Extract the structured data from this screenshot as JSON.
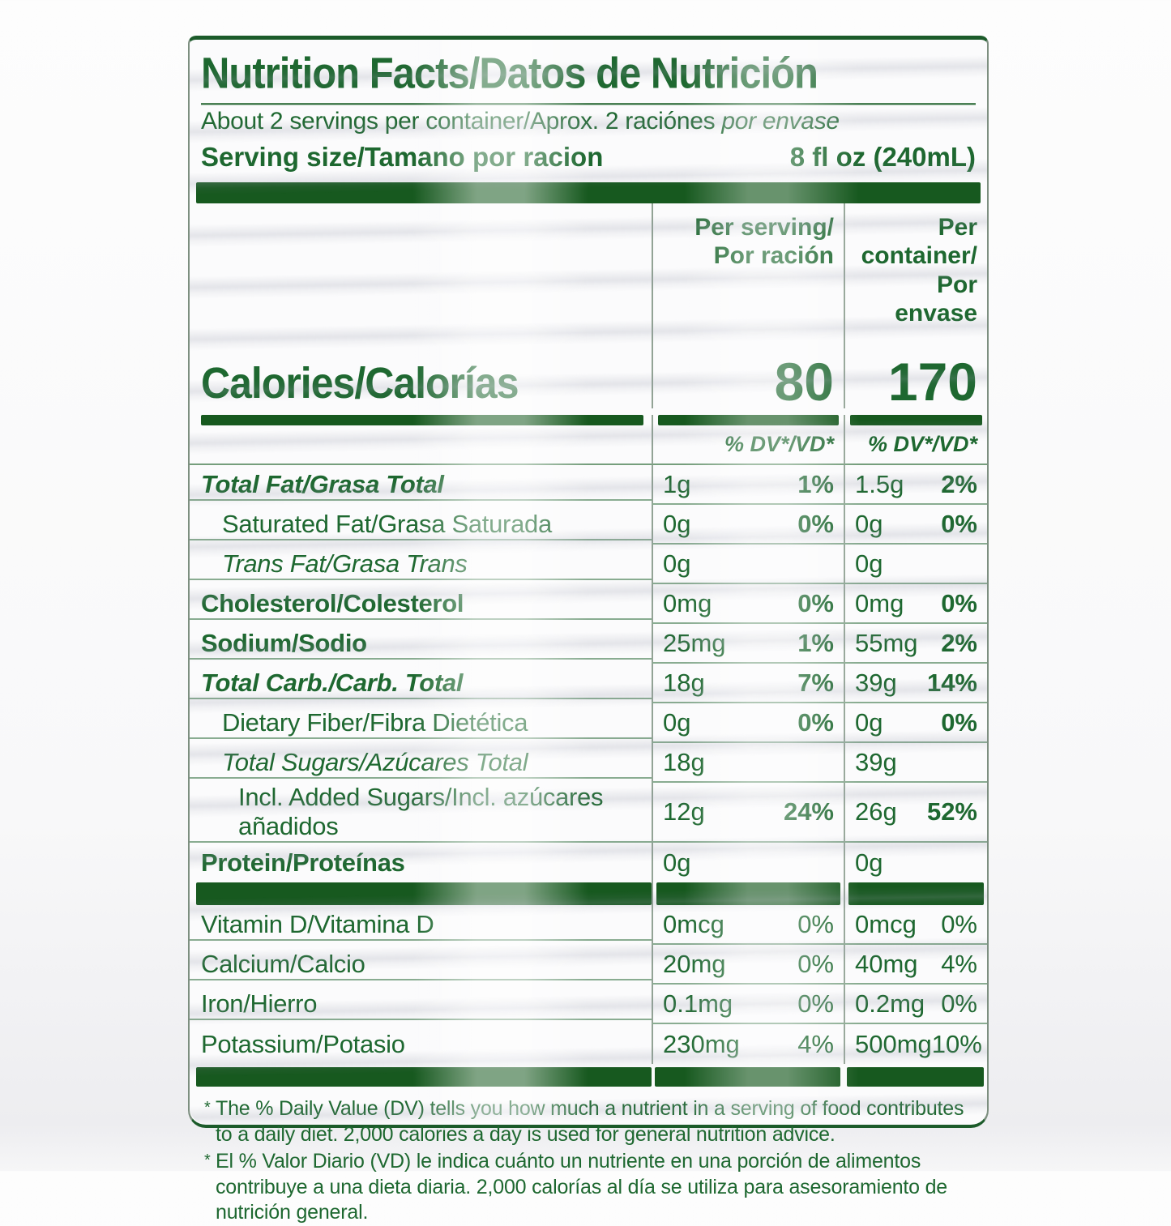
{
  "label": {
    "title": "Nutrition Facts/Datos de Nutrición",
    "servings_line_en": "About 2 servings per container/Aprox. 2 raciónes",
    "servings_line_es": "por envase",
    "serving_size_label": "Serving size/Tamano por racion",
    "serving_size_value": "8 fl oz (240mL)",
    "columns": {
      "per_serving_en": "Per serving/",
      "per_serving_es": "Por ración",
      "per_container_en": "Per container/",
      "per_container_es": "Por envase"
    },
    "calories": {
      "label": "Calories/Calorías",
      "per_serving": "80",
      "per_container": "170"
    },
    "dv_header": "% DV*/VD*",
    "rows": [
      {
        "label": "Total Fat/Grasa Total",
        "ps_amount": "1g",
        "ps_dv": "1%",
        "pc_amount": "1.5g",
        "pc_dv": "2%"
      },
      {
        "label": "Saturated Fat/Grasa Saturada",
        "ps_amount": "0g",
        "ps_dv": "0%",
        "pc_amount": "0g",
        "pc_dv": "0%"
      },
      {
        "label": "Trans Fat/Grasa Trans",
        "ps_amount": "0g",
        "ps_dv": "",
        "pc_amount": "0g",
        "pc_dv": ""
      },
      {
        "label": "Cholesterol/Colesterol",
        "ps_amount": "0mg",
        "ps_dv": "0%",
        "pc_amount": "0mg",
        "pc_dv": "0%"
      },
      {
        "label": "Sodium/Sodio",
        "ps_amount": "25mg",
        "ps_dv": "1%",
        "pc_amount": "55mg",
        "pc_dv": "2%"
      },
      {
        "label": "Total Carb./Carb. Total",
        "ps_amount": "18g",
        "ps_dv": "7%",
        "pc_amount": "39g",
        "pc_dv": "14%"
      },
      {
        "label": "Dietary Fiber/Fibra Dietética",
        "ps_amount": "0g",
        "ps_dv": "0%",
        "pc_amount": "0g",
        "pc_dv": "0%"
      },
      {
        "label": "Total Sugars/Azúcares Total",
        "ps_amount": "18g",
        "ps_dv": "",
        "pc_amount": "39g",
        "pc_dv": ""
      },
      {
        "label": "Incl. Added Sugars/Incl. azúcares añadidos",
        "ps_amount": "12g",
        "ps_dv": "24%",
        "pc_amount": "26g",
        "pc_dv": "52%"
      },
      {
        "label": "Protein/Proteínas",
        "ps_amount": "0g",
        "ps_dv": "",
        "pc_amount": "0g",
        "pc_dv": ""
      },
      {
        "label": "Vitamin D/Vitamina D",
        "ps_amount": "0mcg",
        "ps_dv": "0%",
        "pc_amount": "0mcg",
        "pc_dv": "0%"
      },
      {
        "label": "Calcium/Calcio",
        "ps_amount": "20mg",
        "ps_dv": "0%",
        "pc_amount": "40mg",
        "pc_dv": "4%"
      },
      {
        "label": "Iron/Hierro",
        "ps_amount": "0.1mg",
        "ps_dv": "0%",
        "pc_amount": "0.2mg",
        "pc_dv": "0%"
      },
      {
        "label": "Potassium/Potasio",
        "ps_amount": "230mg",
        "ps_dv": "4%",
        "pc_amount": "500mg",
        "pc_dv": "10%"
      }
    ],
    "footnote_marker": "*",
    "footnotes": [
      "The % Daily Value (DV) tells you how much a nutrient in a serving of food contributes to a daily diet. 2,000 calories a day is used for general nutrition advice.",
      "El % Valor Diario (VD) le indica cuánto un nutriente en una porción de alimentos contribuye a una dieta diaria. 2,000 calorías al día se utiliza para asesoramiento de nutrición general."
    ],
    "colors": {
      "text_green": "#1e6830",
      "bar_green": "#17591f"
    }
  }
}
